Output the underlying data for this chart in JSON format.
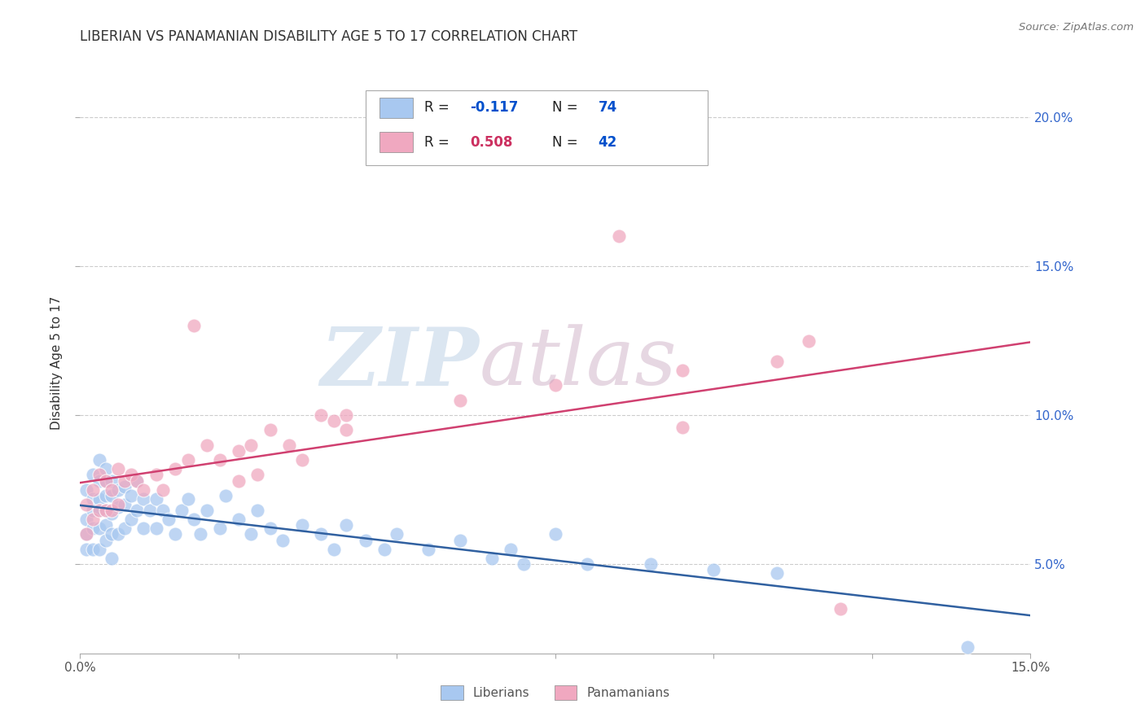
{
  "title": "LIBERIAN VS PANAMANIAN DISABILITY AGE 5 TO 17 CORRELATION CHART",
  "source_text": "Source: ZipAtlas.com",
  "ylabel": "Disability Age 5 to 17",
  "xlim": [
    0.0,
    0.15
  ],
  "ylim": [
    0.02,
    0.215
  ],
  "xticks": [
    0.0,
    0.025,
    0.05,
    0.075,
    0.1,
    0.125,
    0.15
  ],
  "xticklabels": [
    "0.0%",
    "",
    "",
    "",
    "",
    "",
    "15.0%"
  ],
  "yticks": [
    0.05,
    0.1,
    0.15,
    0.2
  ],
  "yticklabels": [
    "5.0%",
    "10.0%",
    "15.0%",
    "20.0%"
  ],
  "liberian_R": -0.117,
  "liberian_N": 74,
  "panamanian_R": 0.508,
  "panamanian_N": 42,
  "liberian_color": "#A8C8F0",
  "panamanian_color": "#F0A8C0",
  "liberian_line_color": "#3060A0",
  "panamanian_line_color": "#D04070",
  "background_color": "#ffffff",
  "grid_color": "#cccccc",
  "watermark_zip_color": "#B0C8E0",
  "watermark_atlas_color": "#C8A8C0",
  "legend_R1_color": "#0050CC",
  "legend_N1_color": "#0050CC",
  "legend_R2_color": "#CC3060",
  "legend_N2_color": "#0050CC",
  "liberian_x": [
    0.001,
    0.001,
    0.001,
    0.001,
    0.002,
    0.002,
    0.002,
    0.002,
    0.002,
    0.003,
    0.003,
    0.003,
    0.003,
    0.003,
    0.003,
    0.004,
    0.004,
    0.004,
    0.004,
    0.004,
    0.004,
    0.005,
    0.005,
    0.005,
    0.005,
    0.005,
    0.006,
    0.006,
    0.006,
    0.007,
    0.007,
    0.007,
    0.008,
    0.008,
    0.009,
    0.009,
    0.01,
    0.01,
    0.011,
    0.012,
    0.012,
    0.013,
    0.014,
    0.015,
    0.016,
    0.017,
    0.018,
    0.019,
    0.02,
    0.022,
    0.023,
    0.025,
    0.027,
    0.028,
    0.03,
    0.032,
    0.035,
    0.038,
    0.04,
    0.042,
    0.045,
    0.048,
    0.05,
    0.055,
    0.06,
    0.065,
    0.068,
    0.07,
    0.075,
    0.08,
    0.09,
    0.1,
    0.11,
    0.14
  ],
  "liberian_y": [
    0.075,
    0.065,
    0.06,
    0.055,
    0.08,
    0.072,
    0.068,
    0.062,
    0.055,
    0.085,
    0.078,
    0.072,
    0.068,
    0.062,
    0.055,
    0.082,
    0.078,
    0.073,
    0.068,
    0.063,
    0.058,
    0.078,
    0.073,
    0.067,
    0.06,
    0.052,
    0.075,
    0.069,
    0.06,
    0.076,
    0.07,
    0.062,
    0.073,
    0.065,
    0.078,
    0.068,
    0.072,
    0.062,
    0.068,
    0.072,
    0.062,
    0.068,
    0.065,
    0.06,
    0.068,
    0.072,
    0.065,
    0.06,
    0.068,
    0.062,
    0.073,
    0.065,
    0.06,
    0.068,
    0.062,
    0.058,
    0.063,
    0.06,
    0.055,
    0.063,
    0.058,
    0.055,
    0.06,
    0.055,
    0.058,
    0.052,
    0.055,
    0.05,
    0.06,
    0.05,
    0.05,
    0.048,
    0.047,
    0.022
  ],
  "panamanian_x": [
    0.001,
    0.001,
    0.002,
    0.002,
    0.003,
    0.003,
    0.004,
    0.004,
    0.005,
    0.005,
    0.006,
    0.006,
    0.007,
    0.008,
    0.009,
    0.01,
    0.012,
    0.013,
    0.015,
    0.017,
    0.018,
    0.02,
    0.022,
    0.025,
    0.027,
    0.03,
    0.033,
    0.038,
    0.04,
    0.042,
    0.035,
    0.028,
    0.025,
    0.042,
    0.06,
    0.075,
    0.085,
    0.095,
    0.095,
    0.11,
    0.115,
    0.12
  ],
  "panamanian_y": [
    0.07,
    0.06,
    0.075,
    0.065,
    0.08,
    0.068,
    0.078,
    0.068,
    0.075,
    0.068,
    0.082,
    0.07,
    0.078,
    0.08,
    0.078,
    0.075,
    0.08,
    0.075,
    0.082,
    0.085,
    0.13,
    0.09,
    0.085,
    0.088,
    0.09,
    0.095,
    0.09,
    0.1,
    0.098,
    0.095,
    0.085,
    0.08,
    0.078,
    0.1,
    0.105,
    0.11,
    0.16,
    0.115,
    0.096,
    0.118,
    0.125,
    0.035
  ]
}
